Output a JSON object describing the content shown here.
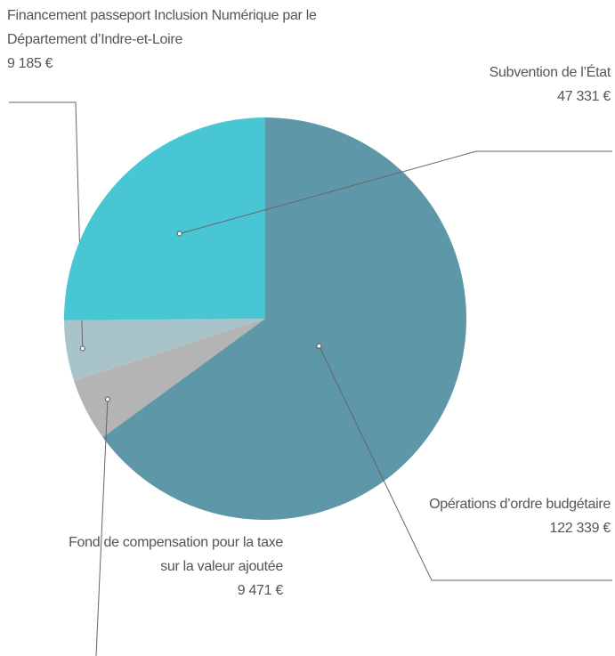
{
  "chart_data": {
    "type": "pie",
    "categories": [
      "Opérations d’ordre budgétaire",
      "Fond de compensation pour la taxe sur la valeur ajoutée",
      "Financement passeport Inclusion Numérique par le Département d’Indre-et-Loire",
      "Subvention de l’État"
    ],
    "values": [
      122339,
      9471,
      9185,
      47331
    ],
    "value_labels": [
      "122 339 €",
      "9 471 €",
      "9 185 €",
      "47 331 €"
    ],
    "colors": [
      "#5e97a8",
      "#b4b4b4",
      "#a9c3cb",
      "#48c6d4"
    ]
  }
}
